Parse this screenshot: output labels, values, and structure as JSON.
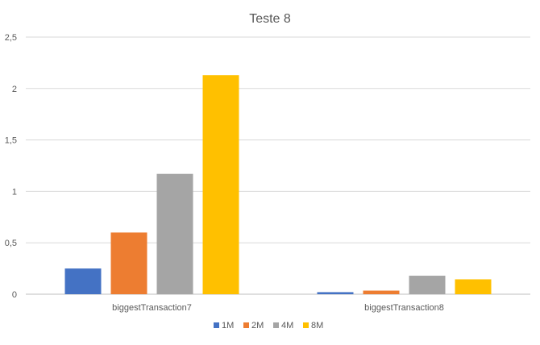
{
  "chart_data": {
    "type": "bar",
    "title": "Teste 8",
    "xlabel": "",
    "ylabel": "",
    "categories": [
      "biggestTransaction7",
      "biggestTransaction8"
    ],
    "series": [
      {
        "name": "1M",
        "color": "#4472C4",
        "values": [
          0.25,
          0.02
        ]
      },
      {
        "name": "2M",
        "color": "#ED7D31",
        "values": [
          0.6,
          0.035
        ]
      },
      {
        "name": "4M",
        "color": "#A5A5A5",
        "values": [
          1.17,
          0.18
        ]
      },
      {
        "name": "8M",
        "color": "#FFC000",
        "values": [
          2.13,
          0.145
        ]
      }
    ],
    "ylim": [
      0,
      2.5
    ],
    "yticks": [
      "0",
      "0,5",
      "1",
      "1,5",
      "2",
      "2,5"
    ],
    "ytick_values": [
      0,
      0.5,
      1,
      1.5,
      2,
      2.5
    ],
    "grid": true,
    "legend_position": "bottom"
  }
}
